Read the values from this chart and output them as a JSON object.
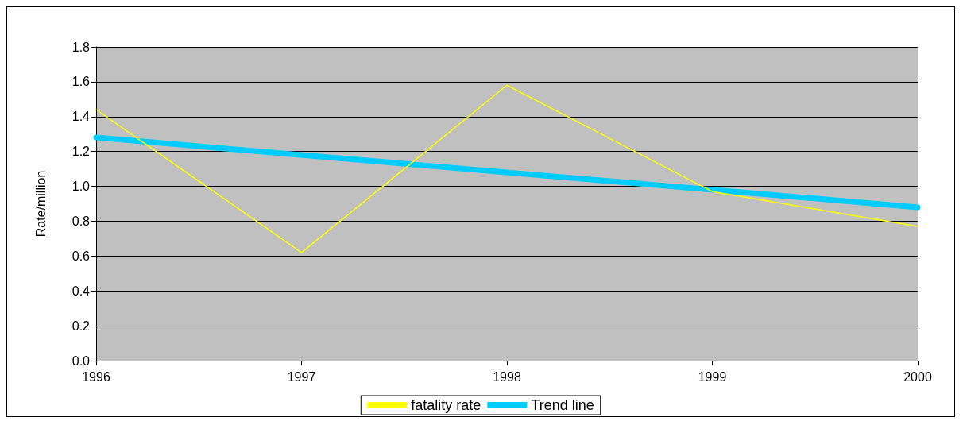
{
  "chart_data": {
    "type": "line",
    "ylabel": "Rate/million",
    "x": [
      1996,
      1997,
      1998,
      1999,
      2000
    ],
    "series": [
      {
        "name": "fatality rate",
        "color": "#ffff00",
        "values": [
          1.44,
          0.62,
          1.58,
          0.97,
          0.77
        ]
      },
      {
        "name": "Trend line",
        "color": "#00ccff",
        "x": [
          1996,
          2000
        ],
        "values": [
          1.28,
          0.88
        ]
      }
    ],
    "xlim": [
      1996,
      2000
    ],
    "xticks": [
      1996,
      1997,
      1998,
      1999,
      2000
    ],
    "ylim": [
      0,
      1.8
    ],
    "yticks": [
      {
        "value": 0,
        "label": "0.0"
      },
      0.2,
      0.4,
      0.6,
      0.8,
      {
        "value": 1,
        "label": "1.0"
      },
      1.2,
      1.4,
      1.6,
      1.8
    ],
    "grid": "y",
    "legend": "bottom",
    "marker": "none",
    "line_style": "solid"
  }
}
